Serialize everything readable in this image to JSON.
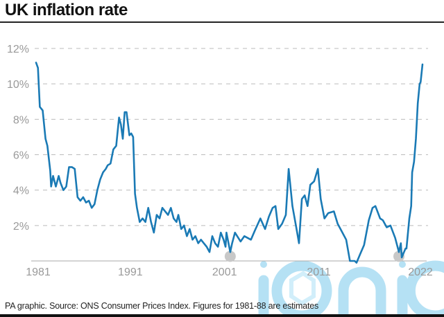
{
  "title": "UK inflation rate",
  "source": "PA graphic. Source: ONS Consumer Prices Index. Figures for 1981-88 are estimates",
  "watermark": "iconic",
  "colors": {
    "line": "#1a7ab5",
    "grid": "#bbbbbb",
    "marker": "#c8c8c8",
    "watermark": "#a9dcf3",
    "tick": "#999999"
  },
  "chart_data": {
    "type": "line",
    "title": "UK inflation rate",
    "xlabel": "",
    "ylabel": "",
    "xlim": [
      1981,
      2022
    ],
    "ylim": [
      0,
      12
    ],
    "grid": "horizontal dashed",
    "y_ticks": [
      {
        "v": 2,
        "label": "2%"
      },
      {
        "v": 4,
        "label": "4%"
      },
      {
        "v": 6,
        "label": "6%"
      },
      {
        "v": 8,
        "label": "8%"
      },
      {
        "v": 10,
        "label": "10%"
      },
      {
        "v": 12,
        "label": "12%"
      }
    ],
    "x_ticks": [
      {
        "v": 1981,
        "label": "1981"
      },
      {
        "v": 1991,
        "label": "1991"
      },
      {
        "v": 2001,
        "label": "2001"
      },
      {
        "v": 2011,
        "label": "2011"
      },
      {
        "v": 2022,
        "label": "2022"
      }
    ],
    "series": [
      {
        "points": [
          [
            1981.0,
            11.2
          ],
          [
            1981.2,
            10.9
          ],
          [
            1981.4,
            8.7
          ],
          [
            1981.7,
            8.5
          ],
          [
            1982.0,
            6.9
          ],
          [
            1982.2,
            6.5
          ],
          [
            1982.5,
            5.1
          ],
          [
            1982.6,
            4.2
          ],
          [
            1982.8,
            4.8
          ],
          [
            1983.1,
            4.2
          ],
          [
            1983.4,
            4.8
          ],
          [
            1983.6,
            4.4
          ],
          [
            1983.9,
            4.0
          ],
          [
            1984.2,
            4.2
          ],
          [
            1984.5,
            5.3
          ],
          [
            1984.8,
            5.3
          ],
          [
            1985.1,
            5.2
          ],
          [
            1985.4,
            3.6
          ],
          [
            1985.7,
            3.4
          ],
          [
            1986.0,
            3.6
          ],
          [
            1986.3,
            3.3
          ],
          [
            1986.6,
            3.4
          ],
          [
            1986.9,
            3.0
          ],
          [
            1987.2,
            3.2
          ],
          [
            1987.5,
            4.0
          ],
          [
            1987.8,
            4.6
          ],
          [
            1988.1,
            5.0
          ],
          [
            1988.4,
            5.2
          ],
          [
            1988.6,
            5.4
          ],
          [
            1988.9,
            5.5
          ],
          [
            1989.2,
            6.3
          ],
          [
            1989.5,
            6.5
          ],
          [
            1989.8,
            8.1
          ],
          [
            1990.0,
            7.7
          ],
          [
            1990.2,
            6.9
          ],
          [
            1990.4,
            8.4
          ],
          [
            1990.6,
            8.4
          ],
          [
            1990.9,
            7.1
          ],
          [
            1991.1,
            7.2
          ],
          [
            1991.3,
            7.0
          ],
          [
            1991.5,
            3.8
          ],
          [
            1991.7,
            3.0
          ],
          [
            1992.0,
            2.2
          ],
          [
            1992.3,
            2.4
          ],
          [
            1992.6,
            2.2
          ],
          [
            1992.9,
            3.0
          ],
          [
            1993.2,
            2.2
          ],
          [
            1993.5,
            1.6
          ],
          [
            1993.8,
            2.6
          ],
          [
            1994.1,
            2.4
          ],
          [
            1994.4,
            3.0
          ],
          [
            1994.7,
            2.8
          ],
          [
            1995.0,
            2.6
          ],
          [
            1995.3,
            3.0
          ],
          [
            1995.6,
            2.4
          ],
          [
            1995.9,
            2.2
          ],
          [
            1996.1,
            2.6
          ],
          [
            1996.4,
            1.8
          ],
          [
            1996.7,
            2.0
          ],
          [
            1997.0,
            1.4
          ],
          [
            1997.3,
            1.8
          ],
          [
            1997.6,
            1.2
          ],
          [
            1997.9,
            1.4
          ],
          [
            1998.2,
            1.0
          ],
          [
            1998.5,
            1.2
          ],
          [
            1998.8,
            1.0
          ],
          [
            1999.1,
            0.8
          ],
          [
            1999.4,
            0.5
          ],
          [
            1999.7,
            1.4
          ],
          [
            2000.0,
            1.0
          ],
          [
            2000.3,
            0.8
          ],
          [
            2000.6,
            1.6
          ],
          [
            2000.9,
            1.2
          ],
          [
            2001.1,
            0.8
          ],
          [
            2001.2,
            1.6
          ],
          [
            2001.6,
            0.5
          ],
          [
            2001.8,
            1.0
          ],
          [
            2002.1,
            1.6
          ],
          [
            2002.7,
            1.1
          ],
          [
            2003.1,
            1.4
          ],
          [
            2003.8,
            1.2
          ],
          [
            2004.2,
            1.7
          ],
          [
            2004.8,
            2.4
          ],
          [
            2005.3,
            1.8
          ],
          [
            2005.7,
            2.5
          ],
          [
            2006.1,
            3.0
          ],
          [
            2006.4,
            3.1
          ],
          [
            2006.7,
            1.8
          ],
          [
            2007.1,
            2.1
          ],
          [
            2007.5,
            2.6
          ],
          [
            2007.8,
            5.2
          ],
          [
            2008.2,
            3.1
          ],
          [
            2008.6,
            1.9
          ],
          [
            2008.9,
            1.0
          ],
          [
            2009.2,
            3.5
          ],
          [
            2009.5,
            3.7
          ],
          [
            2009.8,
            3.1
          ],
          [
            2010.1,
            4.3
          ],
          [
            2010.5,
            4.5
          ],
          [
            2010.9,
            5.2
          ],
          [
            2011.2,
            3.5
          ],
          [
            2011.6,
            2.4
          ],
          [
            2012.0,
            2.7
          ],
          [
            2012.6,
            2.8
          ],
          [
            2013.0,
            2.1
          ],
          [
            2013.4,
            1.7
          ],
          [
            2013.9,
            1.2
          ],
          [
            2014.3,
            0.0
          ],
          [
            2014.8,
            0.0
          ],
          [
            2015.0,
            -0.1
          ],
          [
            2015.4,
            0.4
          ],
          [
            2015.8,
            0.9
          ],
          [
            2016.3,
            2.3
          ],
          [
            2016.7,
            3.0
          ],
          [
            2017.0,
            3.1
          ],
          [
            2017.5,
            2.4
          ],
          [
            2017.8,
            2.3
          ],
          [
            2018.2,
            1.9
          ],
          [
            2018.6,
            2.0
          ],
          [
            2019.1,
            1.3
          ],
          [
            2019.5,
            0.5
          ],
          [
            2019.7,
            1.0
          ],
          [
            2019.8,
            0.2
          ],
          [
            2020.2,
            0.7
          ],
          [
            2020.3,
            0.7
          ],
          [
            2020.6,
            2.4
          ],
          [
            2020.8,
            3.1
          ],
          [
            2020.9,
            5.0
          ],
          [
            2021.1,
            5.6
          ],
          [
            2021.3,
            6.9
          ],
          [
            2021.5,
            8.9
          ],
          [
            2021.7,
            10.0
          ],
          [
            2021.8,
            10.1
          ],
          [
            2022.0,
            11.1
          ]
        ]
      }
    ],
    "highlight_markers": [
      [
        2001.6,
        0.3
      ],
      [
        2019.5,
        0.3
      ]
    ]
  }
}
